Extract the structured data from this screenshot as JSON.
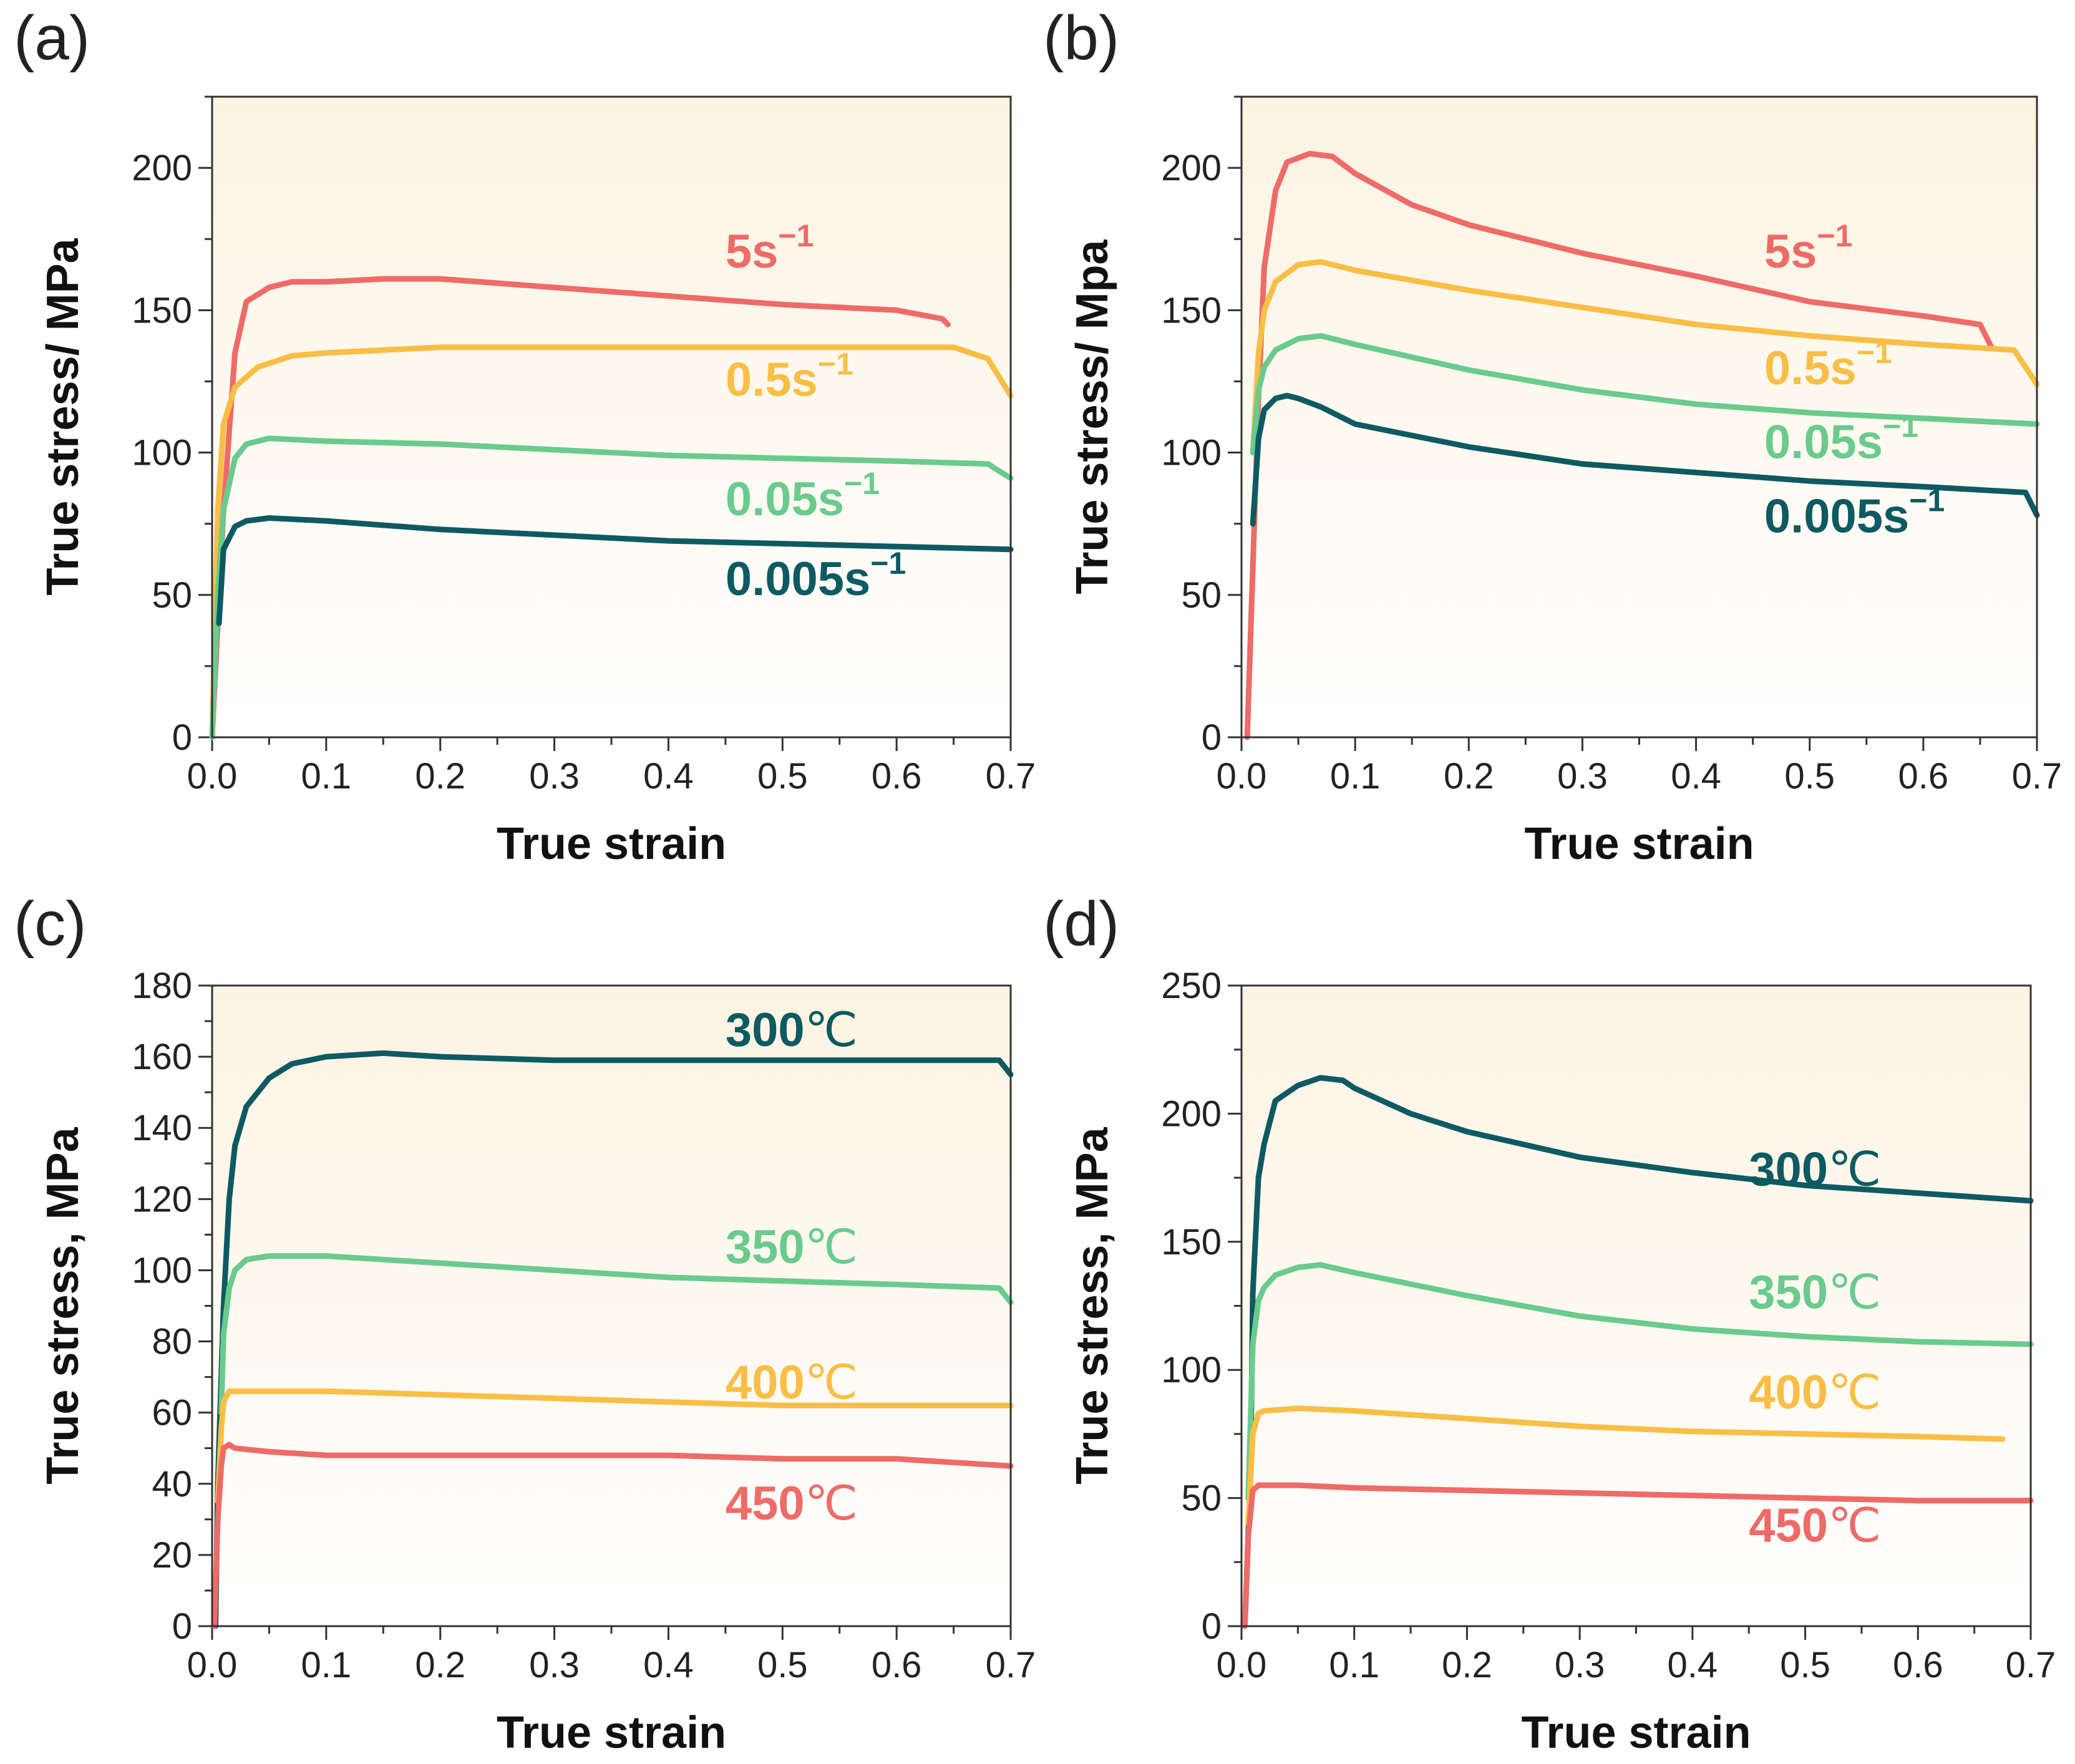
{
  "figure": {
    "colors": {
      "red": "#EE6B67",
      "yellow": "#F9BE45",
      "green": "#6ACB8C",
      "teal": "#0E5A63",
      "plot_bg_top": "#FDF3E2",
      "plot_bg_bottom": "#FFFFFF"
    }
  },
  "chart_data": [
    {
      "panel": "(a)",
      "type": "line",
      "xlabel": "True strain",
      "ylabel": "True stress/ MPa",
      "xlim": [
        0,
        0.7
      ],
      "ylim": [
        0,
        225
      ],
      "xticks": [
        "0.0",
        "0.1",
        "0.2",
        "0.3",
        "0.4",
        "0.5",
        "0.6",
        "0.7"
      ],
      "yticks": [
        "0",
        "50",
        "100",
        "150",
        "200"
      ],
      "ytick_values": [
        0,
        50,
        100,
        150,
        200
      ],
      "series": [
        {
          "name": "5s⁻¹",
          "label_base": "5s",
          "label_exp": "−1",
          "color": "red",
          "label_at": [
            0.45,
            165
          ],
          "x": [
            0,
            0.01,
            0.02,
            0.03,
            0.05,
            0.07,
            0.1,
            0.15,
            0.2,
            0.3,
            0.4,
            0.5,
            0.6,
            0.64,
            0.645
          ],
          "y": [
            0,
            80,
            135,
            153,
            158,
            160,
            160,
            161,
            161,
            158,
            155,
            152,
            150,
            147,
            145
          ]
        },
        {
          "name": "0.5s⁻¹",
          "label_base": "0.5s",
          "label_exp": "−1",
          "color": "yellow",
          "label_at": [
            0.45,
            120
          ],
          "x": [
            0,
            0.005,
            0.01,
            0.02,
            0.04,
            0.07,
            0.1,
            0.2,
            0.3,
            0.4,
            0.5,
            0.6,
            0.65,
            0.68,
            0.7
          ],
          "y": [
            0,
            80,
            110,
            123,
            130,
            134,
            135,
            137,
            137,
            137,
            137,
            137,
            137,
            133,
            120
          ]
        },
        {
          "name": "0.05s⁻¹",
          "label_base": "0.05s",
          "label_exp": "−1",
          "color": "green",
          "label_at": [
            0.45,
            78
          ],
          "x": [
            0,
            0.005,
            0.01,
            0.02,
            0.03,
            0.05,
            0.1,
            0.2,
            0.3,
            0.4,
            0.5,
            0.6,
            0.68,
            0.7
          ],
          "y": [
            0,
            50,
            80,
            98,
            103,
            105,
            104,
            103,
            101,
            99,
            98,
            97,
            96,
            91
          ]
        },
        {
          "name": "0.005s⁻¹",
          "label_base": "0.005s",
          "label_exp": "−1",
          "color": "teal",
          "label_at": [
            0.45,
            50
          ],
          "x": [
            0.006,
            0.01,
            0.02,
            0.03,
            0.05,
            0.1,
            0.2,
            0.3,
            0.4,
            0.5,
            0.6,
            0.7
          ],
          "y": [
            40,
            66,
            74,
            76,
            77,
            76,
            73,
            71,
            69,
            68,
            67,
            66
          ]
        }
      ]
    },
    {
      "panel": "(b)",
      "type": "line",
      "xlabel": "True strain",
      "ylabel": "True stress/ Mpa",
      "xlim": [
        0,
        0.7
      ],
      "ylim": [
        0,
        225
      ],
      "xticks": [
        "0.0",
        "0.1",
        "0.2",
        "0.3",
        "0.4",
        "0.5",
        "0.6",
        "0.7"
      ],
      "yticks": [
        "0",
        "50",
        "100",
        "150",
        "200"
      ],
      "ytick_values": [
        0,
        50,
        100,
        150,
        200
      ],
      "series": [
        {
          "name": "5s⁻¹",
          "label_base": "5s",
          "label_exp": "−1",
          "color": "red",
          "label_at": [
            0.46,
            165
          ],
          "x": [
            0.005,
            0.01,
            0.015,
            0.02,
            0.03,
            0.04,
            0.06,
            0.08,
            0.1,
            0.15,
            0.2,
            0.3,
            0.4,
            0.5,
            0.6,
            0.65,
            0.66
          ],
          "y": [
            0,
            60,
            120,
            165,
            192,
            202,
            205,
            204,
            198,
            187,
            180,
            170,
            162,
            153,
            148,
            145,
            137
          ]
        },
        {
          "name": "0.5s⁻¹",
          "label_base": "0.5s",
          "label_exp": "−1",
          "color": "yellow",
          "label_at": [
            0.46,
            124
          ],
          "x": [
            0.01,
            0.015,
            0.02,
            0.03,
            0.05,
            0.07,
            0.1,
            0.2,
            0.3,
            0.4,
            0.5,
            0.6,
            0.68,
            0.7
          ],
          "y": [
            100,
            135,
            150,
            160,
            166,
            167,
            164,
            157,
            151,
            145,
            141,
            138,
            136,
            124
          ]
        },
        {
          "name": "0.05s⁻¹",
          "label_base": "0.05s",
          "label_exp": "−1",
          "color": "green",
          "label_at": [
            0.46,
            98
          ],
          "x": [
            0.01,
            0.015,
            0.02,
            0.03,
            0.05,
            0.07,
            0.1,
            0.2,
            0.3,
            0.4,
            0.5,
            0.6,
            0.7
          ],
          "y": [
            100,
            122,
            130,
            136,
            140,
            141,
            138,
            129,
            122,
            117,
            114,
            112,
            110
          ]
        },
        {
          "name": "0.005s⁻¹",
          "label_base": "0.005s",
          "label_exp": "−1",
          "color": "teal",
          "label_at": [
            0.46,
            72
          ],
          "x": [
            0.01,
            0.015,
            0.02,
            0.03,
            0.04,
            0.05,
            0.07,
            0.1,
            0.2,
            0.3,
            0.4,
            0.5,
            0.6,
            0.69,
            0.7
          ],
          "y": [
            75,
            105,
            115,
            119,
            120,
            119,
            116,
            110,
            102,
            96,
            93,
            90,
            88,
            86,
            78
          ]
        }
      ]
    },
    {
      "panel": "(c)",
      "type": "line",
      "xlabel": "True strain",
      "ylabel": "True stress, MPa",
      "xlim": [
        0,
        0.7
      ],
      "ylim": [
        0,
        180
      ],
      "xticks": [
        "0.0",
        "0.1",
        "0.2",
        "0.3",
        "0.4",
        "0.5",
        "0.6",
        "0.7"
      ],
      "yticks": [
        "0",
        "20",
        "40",
        "60",
        "80",
        "100",
        "120",
        "140",
        "160",
        "180"
      ],
      "ytick_values": [
        0,
        20,
        40,
        60,
        80,
        100,
        120,
        140,
        160,
        180
      ],
      "series": [
        {
          "name": "300℃",
          "label_base": "300",
          "label_unit": "℃",
          "color": "teal",
          "label_at": [
            0.45,
            163
          ],
          "x": [
            0.003,
            0.005,
            0.01,
            0.015,
            0.02,
            0.03,
            0.05,
            0.07,
            0.1,
            0.15,
            0.2,
            0.3,
            0.4,
            0.5,
            0.6,
            0.69,
            0.7
          ],
          "y": [
            0,
            40,
            90,
            120,
            135,
            146,
            154,
            158,
            160,
            161,
            160,
            159,
            159,
            159,
            159,
            159,
            155
          ]
        },
        {
          "name": "350℃",
          "label_base": "350",
          "label_unit": "℃",
          "color": "green",
          "label_at": [
            0.45,
            102
          ],
          "x": [
            0.008,
            0.01,
            0.015,
            0.02,
            0.03,
            0.05,
            0.1,
            0.2,
            0.3,
            0.4,
            0.5,
            0.6,
            0.69,
            0.7
          ],
          "y": [
            60,
            82,
            95,
            100,
            103,
            104,
            104,
            102,
            100,
            98,
            97,
            96,
            95,
            91
          ]
        },
        {
          "name": "400℃",
          "label_base": "400",
          "label_unit": "℃",
          "color": "yellow",
          "label_at": [
            0.45,
            64
          ],
          "x": [
            0.005,
            0.008,
            0.01,
            0.015,
            0.02,
            0.05,
            0.1,
            0.2,
            0.3,
            0.4,
            0.5,
            0.6,
            0.7
          ],
          "y": [
            35,
            55,
            63,
            66,
            66,
            66,
            66,
            65,
            64,
            63,
            62,
            62,
            62
          ]
        },
        {
          "name": "450℃",
          "label_base": "450",
          "label_unit": "℃",
          "color": "red",
          "label_at": [
            0.45,
            30
          ],
          "x": [
            0.002,
            0.005,
            0.008,
            0.01,
            0.015,
            0.02,
            0.05,
            0.1,
            0.2,
            0.3,
            0.4,
            0.5,
            0.6,
            0.7
          ],
          "y": [
            0,
            30,
            45,
            50,
            51,
            50,
            49,
            48,
            48,
            48,
            48,
            47,
            47,
            45
          ]
        }
      ]
    },
    {
      "panel": "(d)",
      "type": "line",
      "xlabel": "True strain",
      "ylabel": "True stress, MPa",
      "xlim": [
        0,
        0.7
      ],
      "ylim": [
        0,
        250
      ],
      "xticks": [
        "0.0",
        "0.1",
        "0.2",
        "0.3",
        "0.4",
        "0.5",
        "0.6",
        "0.7"
      ],
      "yticks": [
        "0",
        "50",
        "100",
        "150",
        "200",
        "250"
      ],
      "ytick_values": [
        0,
        50,
        100,
        150,
        200,
        250
      ],
      "series": [
        {
          "name": "300℃",
          "label_base": "300",
          "label_unit": "℃",
          "color": "teal",
          "label_at": [
            0.45,
            172
          ],
          "x": [
            0.003,
            0.008,
            0.01,
            0.015,
            0.02,
            0.03,
            0.05,
            0.07,
            0.09,
            0.1,
            0.15,
            0.2,
            0.3,
            0.4,
            0.5,
            0.6,
            0.7
          ],
          "y": [
            0,
            60,
            130,
            175,
            188,
            205,
            211,
            214,
            213,
            210,
            200,
            193,
            183,
            177,
            172,
            169,
            166
          ]
        },
        {
          "name": "350℃",
          "label_base": "350",
          "label_unit": "℃",
          "color": "green",
          "label_at": [
            0.45,
            124
          ],
          "x": [
            0.006,
            0.01,
            0.015,
            0.02,
            0.03,
            0.05,
            0.07,
            0.1,
            0.2,
            0.3,
            0.4,
            0.5,
            0.6,
            0.7
          ],
          "y": [
            50,
            110,
            127,
            132,
            137,
            140,
            141,
            138,
            129,
            121,
            116,
            113,
            111,
            110
          ]
        },
        {
          "name": "400℃",
          "label_base": "400",
          "label_unit": "℃",
          "color": "yellow",
          "label_at": [
            0.45,
            85
          ],
          "x": [
            0.006,
            0.01,
            0.015,
            0.02,
            0.05,
            0.1,
            0.2,
            0.3,
            0.4,
            0.5,
            0.6,
            0.675
          ],
          "y": [
            40,
            75,
            83,
            84,
            85,
            84,
            81,
            78,
            76,
            75,
            74,
            73
          ]
        },
        {
          "name": "450℃",
          "label_base": "450",
          "label_unit": "℃",
          "color": "red",
          "label_at": [
            0.45,
            33
          ],
          "x": [
            0.003,
            0.006,
            0.01,
            0.015,
            0.02,
            0.05,
            0.1,
            0.2,
            0.3,
            0.4,
            0.5,
            0.6,
            0.7
          ],
          "y": [
            0,
            35,
            53,
            55,
            55,
            55,
            54,
            53,
            52,
            51,
            50,
            49,
            49
          ]
        }
      ]
    }
  ]
}
